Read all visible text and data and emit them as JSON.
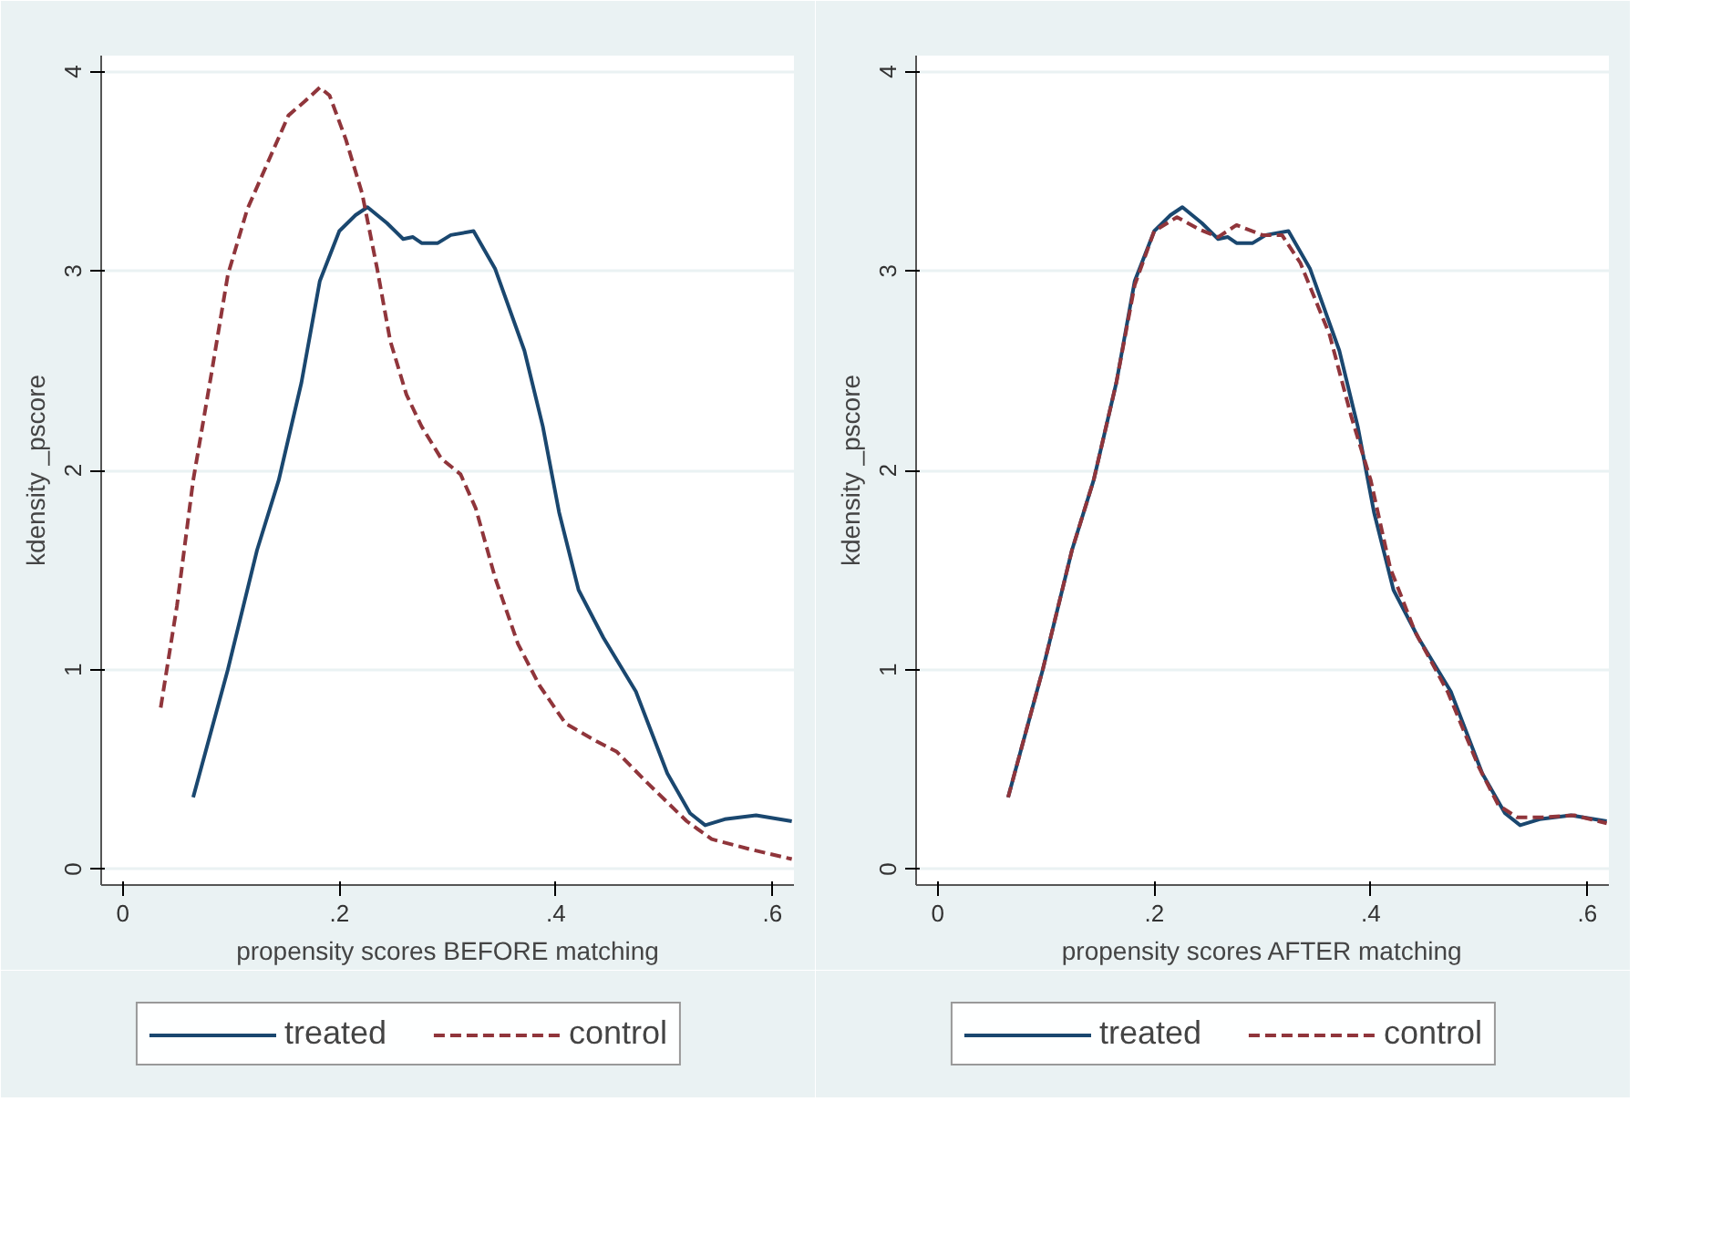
{
  "chart_data": [
    {
      "type": "line",
      "xlabel": "propensity scores BEFORE matching",
      "ylabel": "kdensity _pscore",
      "xlim": [
        -0.02,
        0.62
      ],
      "ylim": [
        -0.08,
        4.08
      ],
      "xticks": [
        0,
        {
          "value": 0.2,
          "label": ".2"
        },
        {
          "value": 0.4,
          "label": ".4"
        },
        {
          "value": 0.6,
          "label": ".6"
        }
      ],
      "yticks": [
        0,
        1,
        2,
        3,
        4
      ],
      "grid": "y",
      "legend": "bottom",
      "series": [
        {
          "name": "treated",
          "color": "#1a476f",
          "line_style": "solid",
          "x": [
            0.065,
            0.097,
            0.124,
            0.144,
            0.165,
            0.182,
            0.2,
            0.215,
            0.226,
            0.244,
            0.259,
            0.268,
            0.276,
            0.291,
            0.303,
            0.324,
            0.344,
            0.371,
            0.388,
            0.403,
            0.421,
            0.444,
            0.474,
            0.503,
            0.524,
            0.538,
            0.556,
            0.585,
            0.618
          ],
          "values": [
            0.36,
            1.0,
            1.6,
            1.95,
            2.44,
            2.95,
            3.2,
            3.28,
            3.32,
            3.24,
            3.16,
            3.17,
            3.14,
            3.14,
            3.18,
            3.2,
            3.01,
            2.6,
            2.22,
            1.79,
            1.4,
            1.16,
            0.89,
            0.48,
            0.28,
            0.22,
            0.25,
            0.27,
            0.24
          ]
        },
        {
          "name": "control",
          "color": "#90353b",
          "line_style": "dashed",
          "x": [
            0.035,
            0.05,
            0.065,
            0.082,
            0.097,
            0.115,
            0.132,
            0.153,
            0.168,
            0.182,
            0.191,
            0.206,
            0.221,
            0.235,
            0.247,
            0.262,
            0.276,
            0.294,
            0.312,
            0.326,
            0.344,
            0.365,
            0.385,
            0.409,
            0.438,
            0.456,
            0.485,
            0.521,
            0.544,
            0.579,
            0.618
          ],
          "values": [
            0.81,
            1.32,
            1.95,
            2.49,
            2.98,
            3.31,
            3.52,
            3.78,
            3.85,
            3.92,
            3.88,
            3.66,
            3.39,
            3.01,
            2.65,
            2.38,
            2.22,
            2.06,
            1.98,
            1.81,
            1.46,
            1.13,
            0.92,
            0.73,
            0.64,
            0.59,
            0.43,
            0.24,
            0.15,
            0.1,
            0.05
          ]
        }
      ]
    },
    {
      "type": "line",
      "xlabel": "propensity scores AFTER matching",
      "ylabel": "kdensity _pscore",
      "xlim": [
        -0.02,
        0.62
      ],
      "ylim": [
        -0.08,
        4.08
      ],
      "xticks": [
        0,
        {
          "value": 0.2,
          "label": ".2"
        },
        {
          "value": 0.4,
          "label": ".4"
        },
        {
          "value": 0.6,
          "label": ".6"
        }
      ],
      "yticks": [
        0,
        1,
        2,
        3,
        4
      ],
      "grid": "y",
      "legend": "bottom",
      "series": [
        {
          "name": "treated",
          "color": "#1a476f",
          "line_style": "solid",
          "x": [
            0.065,
            0.097,
            0.124,
            0.144,
            0.165,
            0.182,
            0.2,
            0.215,
            0.226,
            0.244,
            0.259,
            0.268,
            0.276,
            0.291,
            0.303,
            0.324,
            0.344,
            0.371,
            0.388,
            0.403,
            0.421,
            0.444,
            0.474,
            0.503,
            0.524,
            0.538,
            0.556,
            0.585,
            0.618
          ],
          "values": [
            0.36,
            1.0,
            1.6,
            1.95,
            2.44,
            2.95,
            3.2,
            3.28,
            3.32,
            3.24,
            3.16,
            3.17,
            3.14,
            3.14,
            3.18,
            3.2,
            3.01,
            2.6,
            2.22,
            1.79,
            1.4,
            1.16,
            0.89,
            0.48,
            0.28,
            0.22,
            0.25,
            0.27,
            0.24
          ]
        },
        {
          "name": "control",
          "color": "#90353b",
          "line_style": "dashed",
          "x": [
            0.065,
            0.097,
            0.124,
            0.144,
            0.165,
            0.182,
            0.2,
            0.221,
            0.241,
            0.259,
            0.276,
            0.3,
            0.318,
            0.335,
            0.362,
            0.382,
            0.4,
            0.418,
            0.441,
            0.471,
            0.5,
            0.518,
            0.535,
            0.559,
            0.588,
            0.618
          ],
          "values": [
            0.36,
            1.0,
            1.6,
            1.95,
            2.44,
            2.93,
            3.2,
            3.27,
            3.21,
            3.17,
            3.23,
            3.18,
            3.18,
            3.04,
            2.68,
            2.27,
            1.95,
            1.51,
            1.19,
            0.89,
            0.51,
            0.32,
            0.26,
            0.26,
            0.27,
            0.23
          ]
        }
      ]
    }
  ]
}
